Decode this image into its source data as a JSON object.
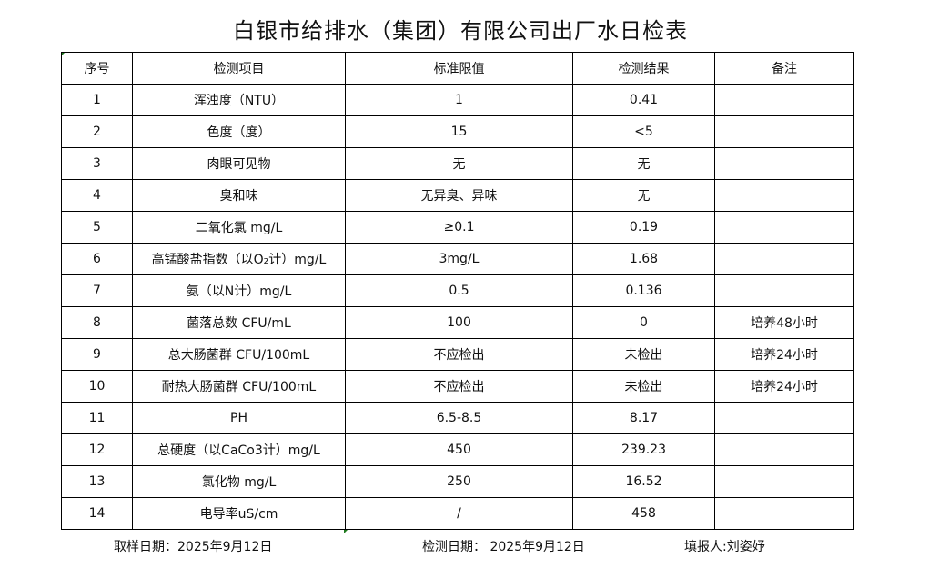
{
  "title": "白银市给排水（集团）有限公司出厂水日检表",
  "headers": [
    "序号",
    "检测项目",
    "标准限值",
    "检测结果",
    "备注"
  ],
  "rows": [
    [
      "1",
      "浑浊度（NTU）",
      "1",
      "0.41",
      ""
    ],
    [
      "2",
      "色度（度）",
      "15",
      "<5",
      ""
    ],
    [
      "3",
      "肉眼可见物",
      "无",
      "无",
      ""
    ],
    [
      "4",
      "臭和味",
      "无异臭、异味",
      "无",
      ""
    ],
    [
      "5",
      "二氧化氯 mg/L",
      "≥0.1",
      "0.19",
      ""
    ],
    [
      "6",
      "高锰酸盐指数（以O₂计）mg/L",
      "3mg/L",
      "1.68",
      ""
    ],
    [
      "7",
      "氨（以N计）mg/L",
      "0.5",
      "0.136",
      ""
    ],
    [
      "8",
      "菌落总数 CFU/mL",
      "100",
      "0",
      "培养48小时"
    ],
    [
      "9",
      "总大肠菌群 CFU/100mL",
      "不应检出",
      "未检出",
      "培养24小时"
    ],
    [
      "10",
      "耐热大肠菌群 CFU/100mL",
      "不应检出",
      "未检出",
      "培养24小时"
    ],
    [
      "11",
      "PH",
      "6.5-8.5",
      "8.17",
      ""
    ],
    [
      "12",
      "总硬度（以CaCo3计）mg/L",
      "450",
      "239.23",
      ""
    ],
    [
      "13",
      "氯化物 mg/L",
      "250",
      "16.52",
      ""
    ],
    [
      "14",
      "电导率uS/cm",
      "/",
      "458",
      ""
    ]
  ],
  "footer": {
    "sampling_date": "取样日期：2025年9月12日",
    "test_date": "检测日期： 2025年9月12日",
    "reporter": "填报人:刘姿妤"
  }
}
